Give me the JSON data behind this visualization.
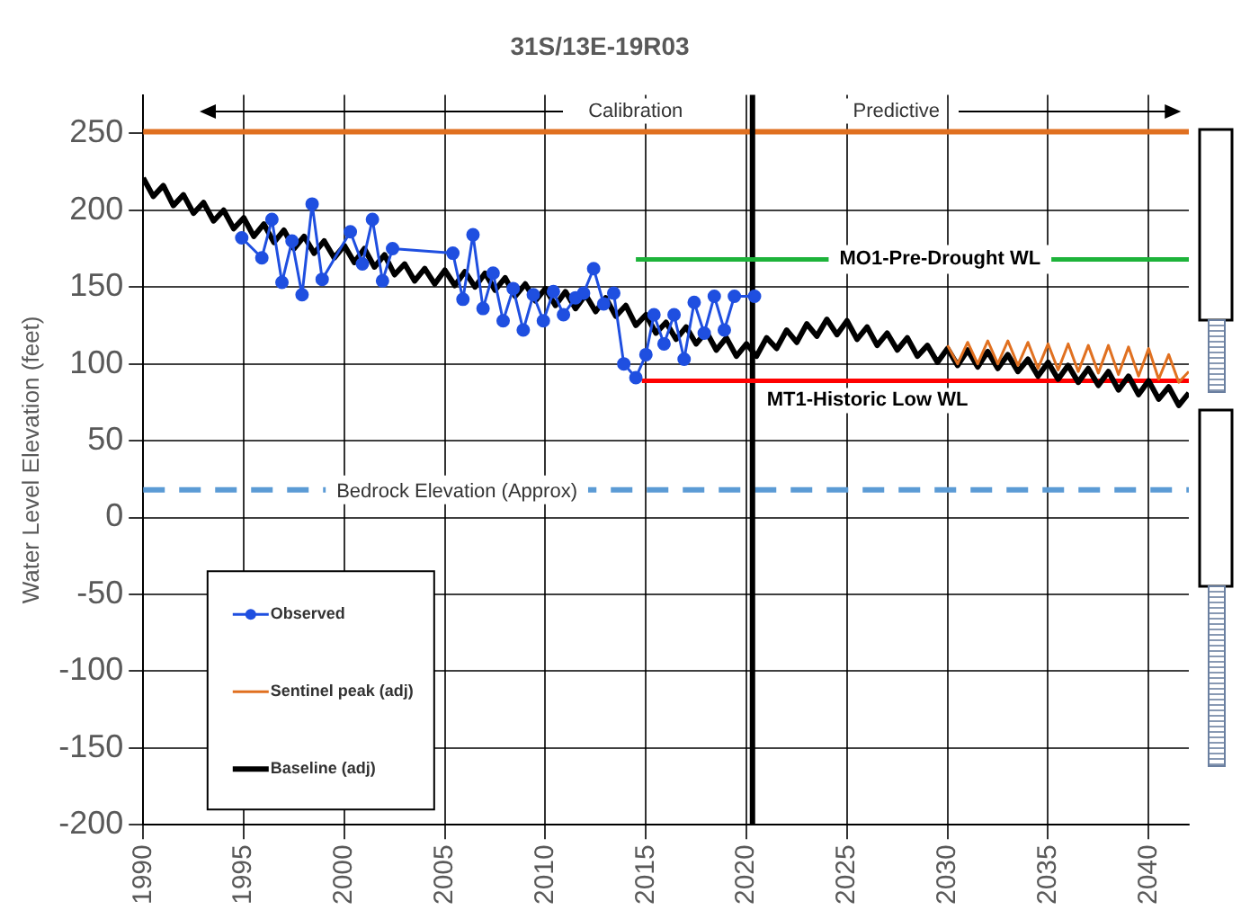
{
  "chart_data": {
    "type": "line",
    "title": "31S/13E-19R03",
    "ylabel": "Water Level Elevation (feet)",
    "xlim": [
      1990,
      2042
    ],
    "xticks": [
      1990,
      1995,
      2000,
      2005,
      2010,
      2015,
      2020,
      2025,
      2030,
      2035,
      2040
    ],
    "ylim": [
      -200,
      275
    ],
    "yticks": [
      -200,
      -150,
      -100,
      -50,
      0,
      50,
      100,
      150,
      200,
      250
    ],
    "grid": true,
    "legend": "bottom left",
    "annotations": [
      "Calibration",
      "Predictive"
    ],
    "ref_lines": [
      {
        "axis": "y",
        "value": 251,
        "color": "#e07020"
      },
      {
        "axis": "y",
        "value": 18,
        "label": "Bedrock Elevation (Approx)",
        "color": "#5b9bd5",
        "line_style": "dashed"
      },
      {
        "axis": "x",
        "value": 2020.3,
        "color": "#000000"
      }
    ],
    "series": [
      {
        "name": "Observed",
        "color": "#1f4fe0",
        "marker": "circle",
        "x": [
          1994.9,
          1995.9,
          1996.4,
          1996.9,
          1997.4,
          1997.9,
          1998.4,
          1998.9,
          2000.3,
          2000.9,
          2001.4,
          2001.9,
          2002.4,
          2005.4,
          2005.9,
          2006.4,
          2006.9,
          2007.4,
          2007.9,
          2008.4,
          2008.9,
          2009.4,
          2009.9,
          2010.4,
          2010.9,
          2011.5,
          2011.9,
          2012.4,
          2012.9,
          2013.4,
          2013.9,
          2014.5,
          2015.0,
          2015.4,
          2015.9,
          2016.4,
          2016.9,
          2017.4,
          2017.9,
          2018.4,
          2018.9,
          2019.4,
          2020.4
        ],
        "values": [
          182,
          169,
          194,
          153,
          180,
          145,
          204,
          155,
          186,
          165,
          194,
          154,
          175,
          172,
          142,
          184,
          136,
          159,
          128,
          149,
          122,
          145,
          128,
          147,
          132,
          143,
          146,
          162,
          139,
          146,
          100,
          91,
          106,
          132,
          113,
          132,
          103,
          140,
          120,
          144,
          122,
          144,
          144
        ]
      },
      {
        "name": "Sentinel peak (adj)",
        "color": "#e07020",
        "marker": "none",
        "x": [
          2030,
          2030.5,
          2031,
          2031.5,
          2032,
          2032.5,
          2033,
          2033.5,
          2034,
          2034.5,
          2035,
          2035.5,
          2036,
          2036.5,
          2037,
          2037.5,
          2038,
          2038.5,
          2039,
          2039.5,
          2040,
          2040.5,
          2041,
          2041.5,
          2042
        ],
        "values": [
          112,
          100,
          114,
          100,
          115,
          100,
          115,
          99,
          114,
          97,
          113,
          96,
          113,
          95,
          112,
          94,
          112,
          93,
          111,
          92,
          110,
          90,
          106,
          88,
          95
        ]
      },
      {
        "name": "Baseline (adj)",
        "color": "#000000",
        "marker": "none",
        "x": [
          1990,
          1990.5,
          1991,
          1991.5,
          1992,
          1992.5,
          1993,
          1993.5,
          1994,
          1994.5,
          1995,
          1995.5,
          1996,
          1996.5,
          1997,
          1997.5,
          1998,
          1998.5,
          1999,
          1999.5,
          2000,
          2000.5,
          2001,
          2001.5,
          2002,
          2002.5,
          2003,
          2003.5,
          2004,
          2004.5,
          2005,
          2005.5,
          2006,
          2006.5,
          2007,
          2007.5,
          2008,
          2008.5,
          2009,
          2009.5,
          2010,
          2010.5,
          2011,
          2011.5,
          2012,
          2012.5,
          2013,
          2013.5,
          2014,
          2014.5,
          2015,
          2015.5,
          2016,
          2016.5,
          2017,
          2017.5,
          2018,
          2018.5,
          2019,
          2019.5,
          2020,
          2020.5,
          2021,
          2021.5,
          2022,
          2022.5,
          2023,
          2023.5,
          2024,
          2024.5,
          2025,
          2025.5,
          2026,
          2026.5,
          2027,
          2027.5,
          2028,
          2028.5,
          2029,
          2029.5,
          2030,
          2030.5,
          2031,
          2031.5,
          2032,
          2032.5,
          2033,
          2033.5,
          2034,
          2034.5,
          2035,
          2035.5,
          2036,
          2036.5,
          2037,
          2037.5,
          2038,
          2038.5,
          2039,
          2039.5,
          2040,
          2040.5,
          2041,
          2041.5,
          2042
        ],
        "values": [
          221,
          209,
          216,
          203,
          210,
          198,
          205,
          193,
          200,
          188,
          195,
          183,
          191,
          179,
          187,
          175,
          183,
          172,
          180,
          169,
          177,
          166,
          175,
          163,
          171,
          158,
          165,
          154,
          162,
          152,
          161,
          151,
          160,
          150,
          159,
          148,
          156,
          144,
          152,
          141,
          149,
          138,
          147,
          136,
          145,
          134,
          143,
          131,
          138,
          125,
          132,
          120,
          127,
          116,
          124,
          113,
          121,
          109,
          117,
          105,
          113,
          105,
          117,
          110,
          122,
          114,
          126,
          118,
          129,
          119,
          128,
          116,
          124,
          112,
          120,
          109,
          117,
          105,
          112,
          101,
          110,
          99,
          109,
          98,
          108,
          97,
          106,
          95,
          103,
          92,
          101,
          90,
          99,
          88,
          97,
          86,
          95,
          83,
          92,
          80,
          89,
          77,
          85,
          73,
          81
        ]
      },
      {
        "name": "MO1-Pre-Drought WL",
        "color": "#1db33a",
        "marker": "none",
        "x": [
          2014.5,
          2042
        ],
        "values": [
          168,
          168
        ]
      },
      {
        "name": "MT1-Historic Low WL",
        "color": "#ff0000",
        "marker": "none",
        "x": [
          2014.8,
          2042
        ],
        "values": [
          89,
          89
        ]
      }
    ]
  }
}
